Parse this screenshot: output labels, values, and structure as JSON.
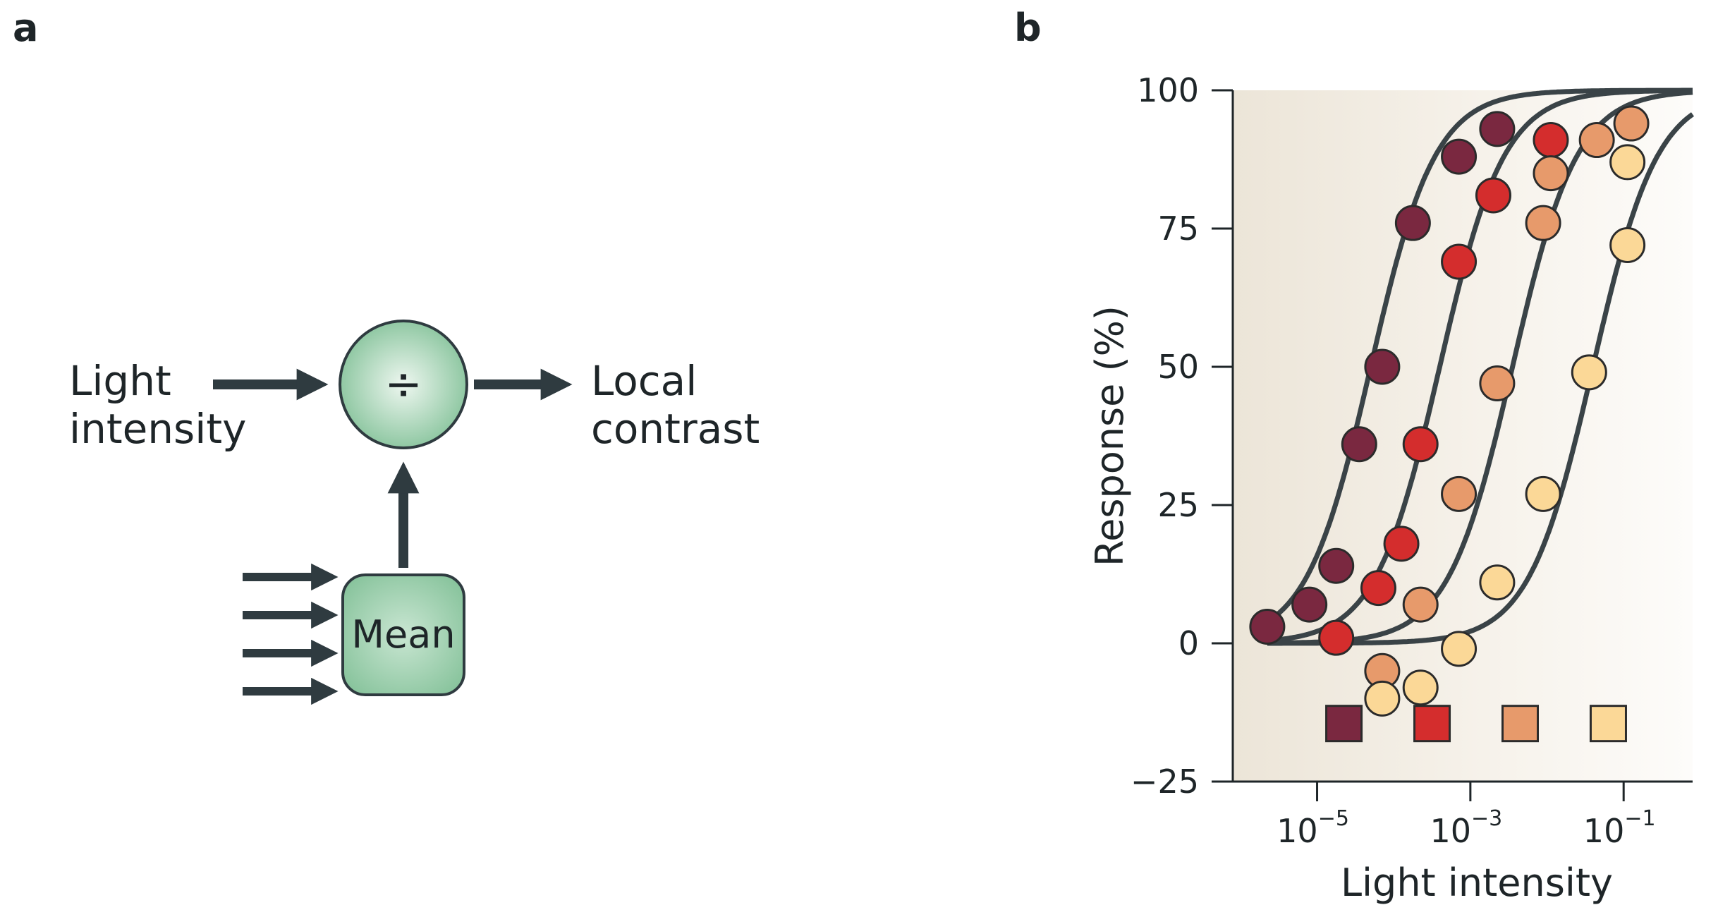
{
  "panels": {
    "a": "a",
    "b": "b"
  },
  "diagram": {
    "input_line1": "Light",
    "input_line2": "intensity",
    "divide_symbol": "÷",
    "output_line1": "Local",
    "output_line2": "contrast",
    "mean_label": "Mean"
  },
  "colors": {
    "node_green": "#8fc9a3",
    "arrow": "#2f3b40",
    "curve": "#3a4347",
    "plot_bg": "#f1ece3"
  },
  "chart_data": {
    "type": "scatter",
    "xlabel": "Light intensity",
    "ylabel": "Response (%)",
    "x_scale": "log10",
    "xlim_log10": [
      -6.1,
      -0.1
    ],
    "ylim": [
      -25,
      100
    ],
    "y_ticks": [
      {
        "value": -25,
        "label": "−25"
      },
      {
        "value": 0,
        "label": "0"
      },
      {
        "value": 25,
        "label": "25"
      },
      {
        "value": 50,
        "label": "50"
      },
      {
        "value": 75,
        "label": "75"
      },
      {
        "value": 100,
        "label": "100"
      }
    ],
    "x_ticks": [
      {
        "log10": -5,
        "base": "10",
        "exp": "−5"
      },
      {
        "log10": -3,
        "base": "10",
        "exp": "−3"
      },
      {
        "log10": -1,
        "base": "10",
        "exp": "−1"
      }
    ],
    "legend_placement": "bottom-inside",
    "series": [
      {
        "color": "#7a2840",
        "half_log10": -4.3,
        "points": [
          {
            "log10": -5.65,
            "y": 3
          },
          {
            "log10": -5.1,
            "y": 7
          },
          {
            "log10": -4.75,
            "y": 14
          },
          {
            "log10": -4.45,
            "y": 36
          },
          {
            "log10": -4.15,
            "y": 50
          },
          {
            "log10": -3.75,
            "y": 76
          },
          {
            "log10": -3.15,
            "y": 88
          },
          {
            "log10": -2.65,
            "y": 93
          }
        ]
      },
      {
        "color": "#d42d2d",
        "half_log10": -3.4,
        "points": [
          {
            "log10": -4.75,
            "y": 1
          },
          {
            "log10": -4.2,
            "y": 10
          },
          {
            "log10": -3.9,
            "y": 18
          },
          {
            "log10": -3.65,
            "y": 36
          },
          {
            "log10": -3.15,
            "y": 69
          },
          {
            "log10": -2.7,
            "y": 81
          },
          {
            "log10": -1.95,
            "y": 91
          }
        ]
      },
      {
        "color": "#e79a6b",
        "half_log10": -2.45,
        "points": [
          {
            "log10": -4.15,
            "y": -5
          },
          {
            "log10": -3.65,
            "y": 7
          },
          {
            "log10": -3.15,
            "y": 27
          },
          {
            "log10": -2.65,
            "y": 47
          },
          {
            "log10": -2.05,
            "y": 76
          },
          {
            "log10": -1.95,
            "y": 85
          },
          {
            "log10": -1.35,
            "y": 91
          },
          {
            "log10": -0.9,
            "y": 94
          }
        ]
      },
      {
        "color": "#fbd897",
        "half_log10": -1.4,
        "points": [
          {
            "log10": -4.15,
            "y": -10
          },
          {
            "log10": -3.65,
            "y": -8
          },
          {
            "log10": -3.15,
            "y": -1
          },
          {
            "log10": -2.65,
            "y": 11
          },
          {
            "log10": -2.05,
            "y": 27
          },
          {
            "log10": -1.45,
            "y": 49
          },
          {
            "log10": -0.95,
            "y": 72
          },
          {
            "log10": -0.95,
            "y": 87
          }
        ]
      }
    ]
  }
}
